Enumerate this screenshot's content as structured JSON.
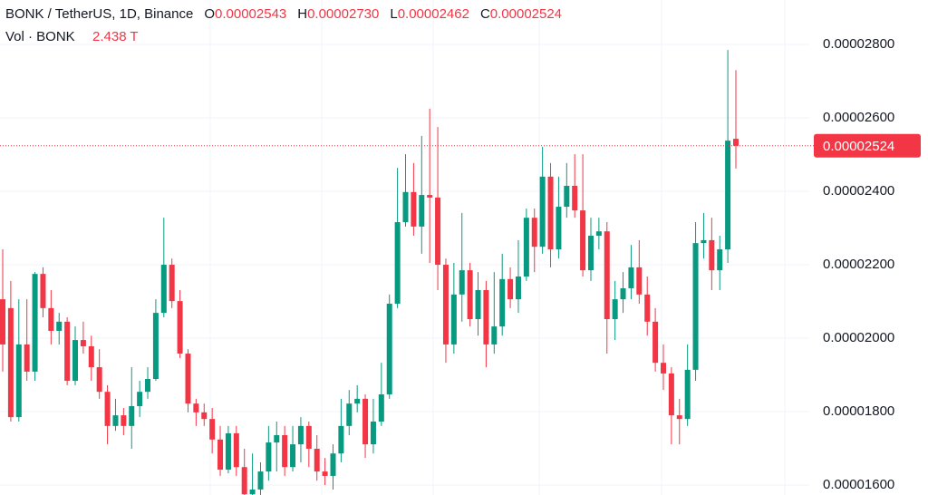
{
  "chart_data": {
    "type": "candlestick",
    "header": {
      "symbol": "BONK / TetherUS, 1D, Binance",
      "ohlc": [
        {
          "key": "O",
          "label": "0.00002543"
        },
        {
          "key": "H",
          "label": "0.00002730"
        },
        {
          "key": "L",
          "label": "0.00002462"
        },
        {
          "key": "C",
          "label": "0.00002524"
        }
      ],
      "volume_label": "Vol · BONK",
      "volume_value": "2.438 T"
    },
    "last_price_label": "0.00002524",
    "up_color": "#089981",
    "down_color": "#f23645",
    "open": [
      2.106e-05,
      2.082e-05,
      1.785e-05,
      1.983e-05,
      1.909e-05,
      2.175e-05,
      2.082e-05,
      2.02e-05,
      2.045e-05,
      1.884e-05,
      1.995e-05,
      1.978e-05,
      1.921e-05,
      1.854e-05,
      1.761e-05,
      1.79e-05,
      1.761e-05,
      1.815e-05,
      1.854e-05,
      1.889e-05,
      2.069e-05,
      2.2e-05,
      2.101e-05,
      1.958e-05,
      1.822e-05,
      1.798e-05,
      1.78e-05,
      1.724e-05,
      1.642e-05,
      1.741e-05,
      1.649e-05,
      1.575e-05,
      1.588e-05,
      1.637e-05,
      1.716e-05,
      1.736e-05,
      1.649e-05,
      1.711e-05,
      1.761e-05,
      1.699e-05,
      1.637e-05,
      1.625e-05,
      1.686e-05,
      1.761e-05,
      1.822e-05,
      1.835e-05,
      1.711e-05,
      1.773e-05,
      1.847e-05,
      2.094e-05,
      2.316e-05,
      2.398e-05,
      2.304e-05,
      2.39e-05,
      2.383e-05,
      2.2e-05,
      1.983e-05,
      2.119e-05,
      2.185e-05,
      2.052e-05,
      2.131e-05,
      1.983e-05,
      2.032e-05,
      2.161e-05,
      2.106e-05,
      2.168e-05,
      2.328e-05,
      2.249e-05,
      2.44e-05,
      2.242e-05,
      2.358e-05,
      2.415e-05,
      2.348e-05,
      2.185e-05,
      2.279e-05,
      2.291e-05,
      2.052e-05,
      2.106e-05,
      2.136e-05,
      2.193e-05,
      2.119e-05,
      2.045e-05,
      1.933e-05,
      1.904e-05,
      1.79e-05,
      1.78e-05,
      1.914e-05,
      2.259e-05,
      2.267e-05,
      2.185e-05,
      2.242e-05,
      2.543e-05
    ],
    "high": [
      2.242e-05,
      2.156e-05,
      2.106e-05,
      2.106e-05,
      2.18e-05,
      2.193e-05,
      2.131e-05,
      2.069e-05,
      2.057e-05,
      2.032e-05,
      2.045e-05,
      2.007e-05,
      1.97e-05,
      1.872e-05,
      1.835e-05,
      1.81e-05,
      1.921e-05,
      1.884e-05,
      1.921e-05,
      2.106e-05,
      2.328e-05,
      2.217e-05,
      2.131e-05,
      1.97e-05,
      1.835e-05,
      1.822e-05,
      1.81e-05,
      1.761e-05,
      1.761e-05,
      1.761e-05,
      1.699e-05,
      1.686e-05,
      1.662e-05,
      1.761e-05,
      1.773e-05,
      1.761e-05,
      1.761e-05,
      1.785e-05,
      1.773e-05,
      1.736e-05,
      1.674e-05,
      1.711e-05,
      1.835e-05,
      1.859e-05,
      1.872e-05,
      1.847e-05,
      1.835e-05,
      1.933e-05,
      2.119e-05,
      2.464e-05,
      2.501e-05,
      2.477e-05,
      2.551e-05,
      2.625e-05,
      2.575e-05,
      2.217e-05,
      2.205e-05,
      2.341e-05,
      2.205e-05,
      2.18e-05,
      2.156e-05,
      2.18e-05,
      2.23e-05,
      2.193e-05,
      2.267e-05,
      2.353e-05,
      2.353e-05,
      2.521e-05,
      2.477e-05,
      2.44e-05,
      2.477e-05,
      2.501e-05,
      2.501e-05,
      2.328e-05,
      2.328e-05,
      2.316e-05,
      2.156e-05,
      2.18e-05,
      2.254e-05,
      2.267e-05,
      2.168e-05,
      2.082e-05,
      1.983e-05,
      1.921e-05,
      1.835e-05,
      1.983e-05,
      2.316e-05,
      2.341e-05,
      2.328e-05,
      2.279e-05,
      2.785e-05,
      2.73e-05
    ],
    "low": [
      1.909e-05,
      1.773e-05,
      1.773e-05,
      1.884e-05,
      1.884e-05,
      2.057e-05,
      1.983e-05,
      1.983e-05,
      1.872e-05,
      1.872e-05,
      1.958e-05,
      1.884e-05,
      1.835e-05,
      1.711e-05,
      1.748e-05,
      1.736e-05,
      1.699e-05,
      1.785e-05,
      1.835e-05,
      1.884e-05,
      2.057e-05,
      2.082e-05,
      1.946e-05,
      1.798e-05,
      1.761e-05,
      1.761e-05,
      1.686e-05,
      1.625e-05,
      1.632e-05,
      1.625e-05,
      1.573e-05,
      1.573e-05,
      1.573e-05,
      1.612e-05,
      1.637e-05,
      1.625e-05,
      1.637e-05,
      1.662e-05,
      1.649e-05,
      1.612e-05,
      1.6e-05,
      1.588e-05,
      1.662e-05,
      1.736e-05,
      1.798e-05,
      1.674e-05,
      1.686e-05,
      1.761e-05,
      1.835e-05,
      2.082e-05,
      2.304e-05,
      2.279e-05,
      2.23e-05,
      2.205e-05,
      2.131e-05,
      1.933e-05,
      1.958e-05,
      2.045e-05,
      2.032e-05,
      2.007e-05,
      1.921e-05,
      1.958e-05,
      2.007e-05,
      2.082e-05,
      2.069e-05,
      2.156e-05,
      2.18e-05,
      2.23e-05,
      2.193e-05,
      2.217e-05,
      2.328e-05,
      2.328e-05,
      2.168e-05,
      2.156e-05,
      2.242e-05,
      1.958e-05,
      1.995e-05,
      2.069e-05,
      2.106e-05,
      2.094e-05,
      2.007e-05,
      1.909e-05,
      1.859e-05,
      1.711e-05,
      1.711e-05,
      1.761e-05,
      1.884e-05,
      2.217e-05,
      2.131e-05,
      2.131e-05,
      2.205e-05,
      2.462e-05
    ],
    "close": [
      1.983e-05,
      1.785e-05,
      1.983e-05,
      1.909e-05,
      2.175e-05,
      2.082e-05,
      2.02e-05,
      2.045e-05,
      1.884e-05,
      1.995e-05,
      1.978e-05,
      1.921e-05,
      1.854e-05,
      1.761e-05,
      1.79e-05,
      1.761e-05,
      1.815e-05,
      1.854e-05,
      1.889e-05,
      2.069e-05,
      2.2e-05,
      2.101e-05,
      1.958e-05,
      1.822e-05,
      1.798e-05,
      1.78e-05,
      1.724e-05,
      1.642e-05,
      1.741e-05,
      1.649e-05,
      1.575e-05,
      1.588e-05,
      1.637e-05,
      1.716e-05,
      1.736e-05,
      1.649e-05,
      1.711e-05,
      1.761e-05,
      1.699e-05,
      1.637e-05,
      1.625e-05,
      1.686e-05,
      1.761e-05,
      1.822e-05,
      1.835e-05,
      1.711e-05,
      1.773e-05,
      1.847e-05,
      2.094e-05,
      2.316e-05,
      2.398e-05,
      2.304e-05,
      2.39e-05,
      2.383e-05,
      2.2e-05,
      1.983e-05,
      2.119e-05,
      2.185e-05,
      2.052e-05,
      2.131e-05,
      1.983e-05,
      2.032e-05,
      2.161e-05,
      2.106e-05,
      2.168e-05,
      2.328e-05,
      2.249e-05,
      2.44e-05,
      2.242e-05,
      2.358e-05,
      2.415e-05,
      2.348e-05,
      2.185e-05,
      2.279e-05,
      2.291e-05,
      2.052e-05,
      2.106e-05,
      2.136e-05,
      2.193e-05,
      2.119e-05,
      2.045e-05,
      1.933e-05,
      1.904e-05,
      1.79e-05,
      1.78e-05,
      1.914e-05,
      2.259e-05,
      2.267e-05,
      2.185e-05,
      2.242e-05,
      2.538e-05,
      2.524e-05
    ],
    "ylim": [
      1.573e-05,
      2.921e-05
    ],
    "yticks": [
      {
        "value": 1.6e-05,
        "label": "0.00001600"
      },
      {
        "value": 1.8e-05,
        "label": "0.00001800"
      },
      {
        "value": 2e-05,
        "label": "0.00002000"
      },
      {
        "value": 2.2e-05,
        "label": "0.00002200"
      },
      {
        "value": 2.4e-05,
        "label": "0.00002400"
      },
      {
        "value": 2.6e-05,
        "label": "0.00002600"
      },
      {
        "value": 2.8e-05,
        "label": "0.00002800"
      }
    ],
    "grid": true
  }
}
